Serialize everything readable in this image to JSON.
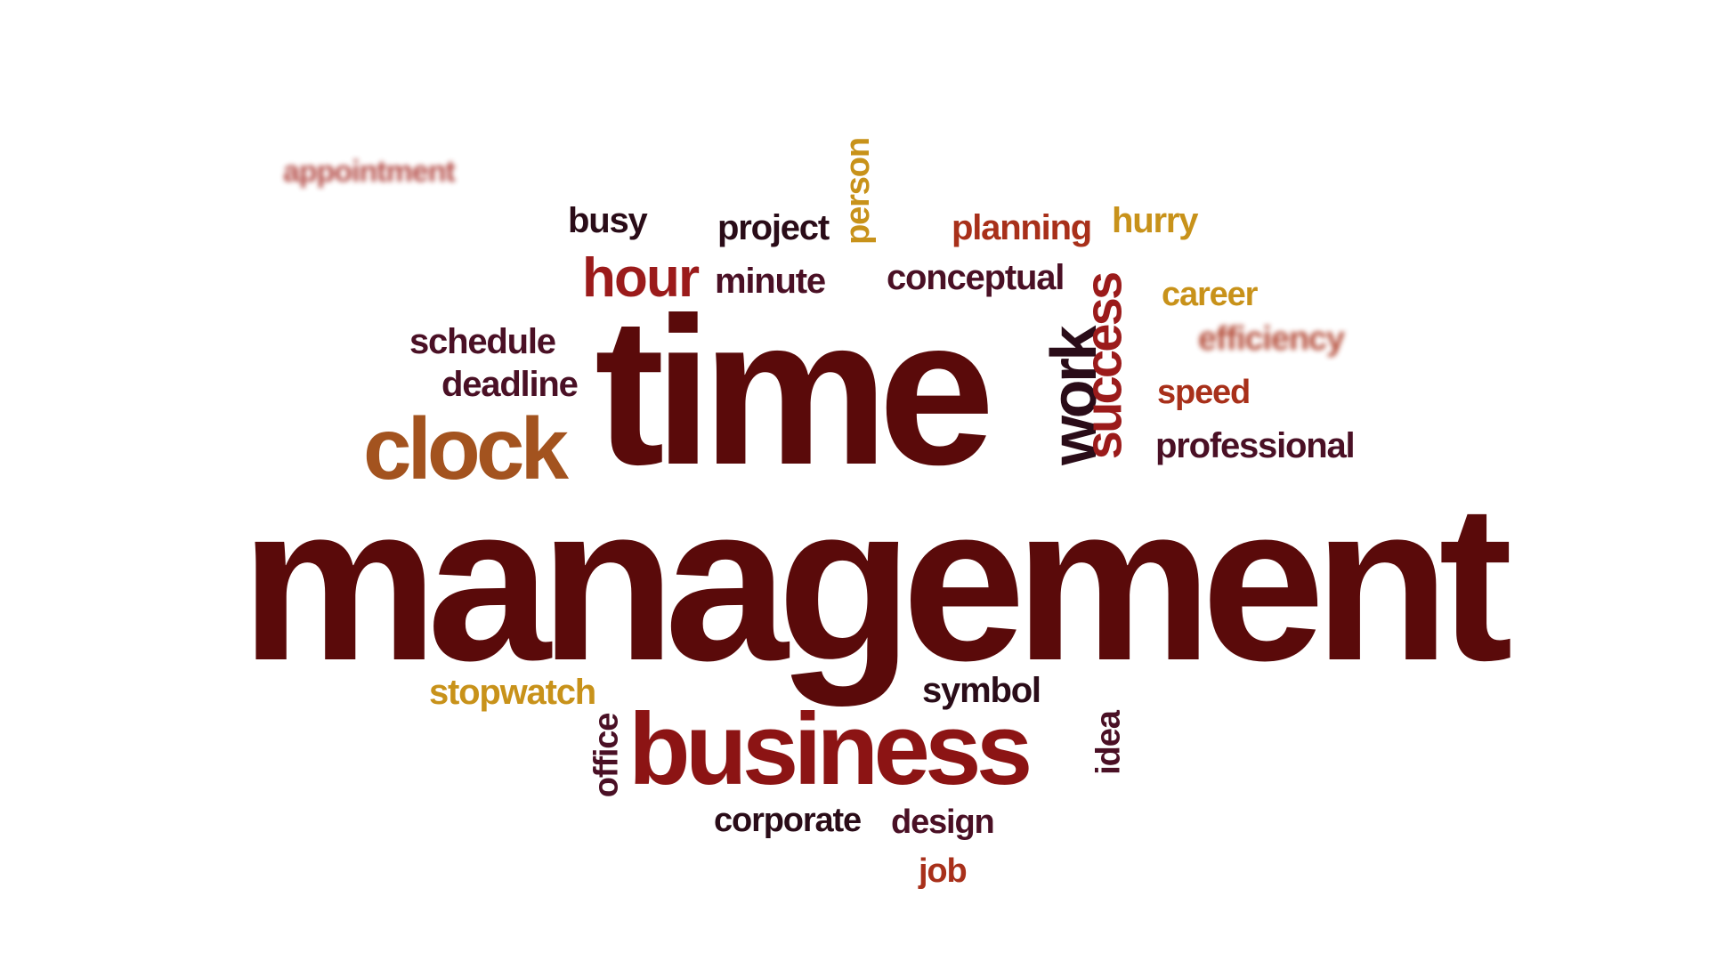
{
  "colors": {
    "maroon": "#5a0a0a",
    "dark_red": "#8c1414",
    "crimson": "#9b1b1b",
    "brown_orange": "#a3531f",
    "gold": "#c8921a",
    "dark": "#2a0c18",
    "plum": "#4a1025",
    "red_orange": "#a8301a"
  },
  "words": {
    "appointment": "appointment",
    "busy": "busy",
    "project": "project",
    "person": "person",
    "planning": "planning",
    "hurry": "hurry",
    "hour": "hour",
    "minute": "minute",
    "conceptual": "conceptual",
    "career": "career",
    "efficiency": "efficiency",
    "schedule": "schedule",
    "deadline": "deadline",
    "time": "time",
    "work": "work",
    "success": "success",
    "speed": "speed",
    "clock": "clock",
    "professional": "professional",
    "management": "management",
    "stopwatch": "stopwatch",
    "symbol": "symbol",
    "office": "office",
    "business": "business",
    "idea": "idea",
    "corporate": "corporate",
    "design": "design",
    "job": "job"
  }
}
